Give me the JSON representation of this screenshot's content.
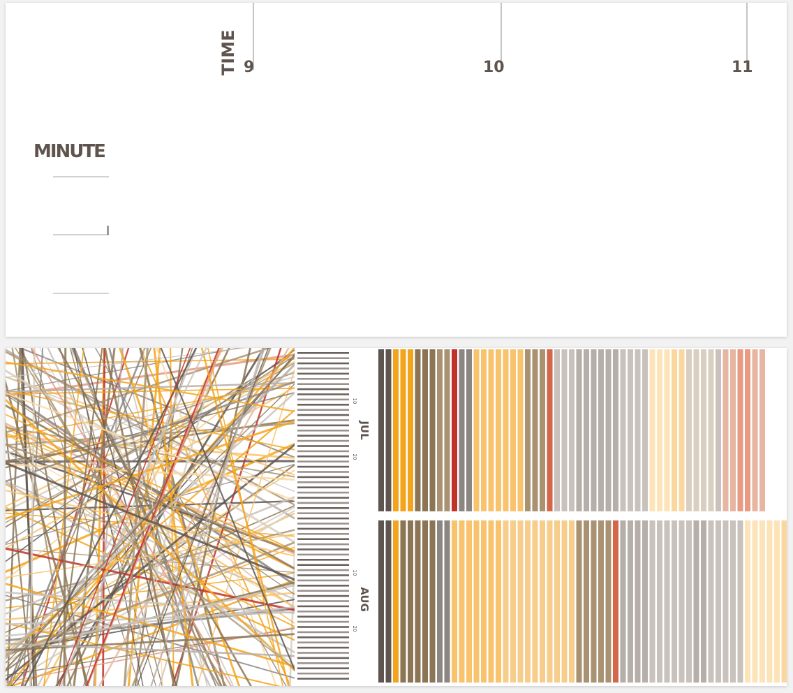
{
  "timeline": {
    "axis_title": "TIME",
    "ticks": [
      {
        "label": "9"
      },
      {
        "label": "10"
      },
      {
        "label": "11"
      }
    ],
    "minute_label": "MINUTE",
    "minute_marker_label": "I"
  },
  "calendar": {
    "months": [
      {
        "label": "JUL",
        "day_labels": [
          "10",
          "20"
        ]
      },
      {
        "label": "AUG",
        "day_labels": [
          "10",
          "20"
        ]
      }
    ]
  },
  "colors": {
    "text": "#5e544d",
    "axis_line": "#c4c4c4",
    "palette": [
      "#5e5550",
      "#f3a41c",
      "#f8c36c",
      "#8b7555",
      "#a89272",
      "#c0322a",
      "#8c8682",
      "#f7cd8c",
      "#fbd7a0",
      "#c9c2bc",
      "#b6aea8",
      "#fce3b8",
      "#d8cfc0",
      "#e6b6a2",
      "#e89a82",
      "#d4664a"
    ]
  },
  "chart_data": [
    {
      "type": "line",
      "title": "",
      "xlabel": "TIME",
      "ylabel": "MINUTE",
      "x_ticks": [
        9,
        10,
        11
      ],
      "xlim": [
        9,
        11
      ],
      "grid": false,
      "series": []
    },
    {
      "type": "bar",
      "title": "",
      "categories": [
        "JUL",
        "AUG"
      ],
      "stripe_colors": [
        [
          "#5e5550",
          "#5e5550",
          "#f3a41c",
          "#f3a41c",
          "#f3a41c",
          "#8b7555",
          "#8b7555",
          "#8b7555",
          "#a89272",
          "#a89272",
          "#c0322a",
          "#8c8682",
          "#8c8682",
          "#f8c36c",
          "#f8c36c",
          "#f8c36c",
          "#f8c36c",
          "#f8c36c",
          "#f8c36c",
          "#f8c36c",
          "#a89272",
          "#a89272",
          "#a89272",
          "#d4664a",
          "#c9c2bc",
          "#c9c2bc",
          "#c9c2bc",
          "#b6aea8",
          "#b6aea8",
          "#b6aea8",
          "#b6aea8",
          "#b6aea8",
          "#b6aea8",
          "#c9c2bc",
          "#c9c2bc",
          "#c9c2bc",
          "#c9c2bc",
          "#fce3b8",
          "#fce3b8",
          "#fce3b8",
          "#fbd7a0",
          "#fbd7a0",
          "#d8cfc0",
          "#d8cfc0",
          "#d8cfc0",
          "#d8cfc0",
          "#c9c2bc",
          "#e6b6a2",
          "#e6b6a2",
          "#e89a82",
          "#e89a82",
          "#e6b6a2",
          "#e6b6a2"
        ],
        [
          "#5e5550",
          "#5e5550",
          "#f3a41c",
          "#8b7555",
          "#8b7555",
          "#8b7555",
          "#8b7555",
          "#8b7555",
          "#8c8682",
          "#8c8682",
          "#f8c36c",
          "#f8c36c",
          "#f8c36c",
          "#f8c36c",
          "#f8c36c",
          "#f8c36c",
          "#f8c36c",
          "#f7cd8c",
          "#f7cd8c",
          "#f7cd8c",
          "#f7cd8c",
          "#f7cd8c",
          "#f7cd8c",
          "#f7cd8c",
          "#f7cd8c",
          "#f7cd8c",
          "#f7cd8c",
          "#a89272",
          "#a89272",
          "#a89272",
          "#a89272",
          "#a89272",
          "#d4664a",
          "#b6aea8",
          "#b6aea8",
          "#b6aea8",
          "#b6aea8",
          "#c9c2bc",
          "#c9c2bc",
          "#c9c2bc",
          "#c9c2bc",
          "#c9c2bc",
          "#c9c2bc",
          "#b6aea8",
          "#b6aea8",
          "#c9c2bc",
          "#c9c2bc",
          "#c9c2bc",
          "#c9c2bc",
          "#c9c2bc",
          "#fce3b8",
          "#fce3b8",
          "#fce3b8",
          "#fce3b8",
          "#fce3b8",
          "#fbd7a0",
          "#fbd7a0"
        ]
      ]
    }
  ]
}
